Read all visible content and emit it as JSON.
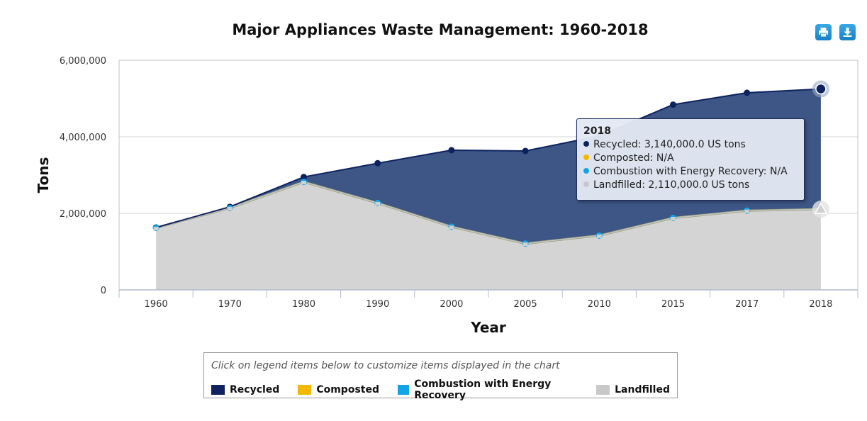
{
  "chart_data": {
    "type": "area",
    "title": "Major Appliances Waste Management: 1960-2018",
    "xlabel": "Year",
    "ylabel": "Tons",
    "categories": [
      "1960",
      "1970",
      "1980",
      "1990",
      "2000",
      "2005",
      "2010",
      "2015",
      "2017",
      "2018"
    ],
    "ylim": [
      0,
      6000000
    ],
    "yticks": [
      0,
      2000000,
      4000000,
      6000000
    ],
    "ytick_labels": [
      "0",
      "2,000,000",
      "4,000,000",
      "6,000,000"
    ],
    "stacked": true,
    "series": [
      {
        "name": "Recycled",
        "color": "#0e2260",
        "values": [
          10000,
          30000,
          130000,
          1040000,
          2000000,
          2420000,
          2600000,
          2960000,
          3080000,
          3140000
        ]
      },
      {
        "name": "Composted",
        "color": "#f5b800",
        "values": [
          null,
          null,
          null,
          null,
          null,
          null,
          null,
          null,
          null,
          null
        ]
      },
      {
        "name": "Combustion with Energy Recovery",
        "color": "#13a4e8",
        "values": [
          0,
          0,
          0,
          0,
          0,
          0,
          0,
          0,
          0,
          0
        ]
      },
      {
        "name": "Landfilled",
        "color": "#c8c8c8",
        "values": [
          1620000,
          2140000,
          2820000,
          2270000,
          1650000,
          1210000,
          1420000,
          1880000,
          2070000,
          2110000
        ]
      }
    ]
  },
  "tooltip": {
    "header": "2018",
    "rows": [
      {
        "text": "Recycled: 3,140,000.0 US tons",
        "color": "#0e2260"
      },
      {
        "text": "Composted: N/A",
        "color": "#f5b800"
      },
      {
        "text": "Combustion with Energy Recovery: N/A",
        "color": "#13a4e8"
      },
      {
        "text": "Landfilled: 2,110,000.0 US tons",
        "color": "#c8c8c8"
      }
    ]
  },
  "legend": {
    "hint": "Click on legend items below to customize items displayed in the chart",
    "items": [
      {
        "label": "Recycled",
        "color": "#0e2260"
      },
      {
        "label": "Composted",
        "color": "#f5b800"
      },
      {
        "label": "Combustion with Energy Recovery",
        "color": "#13a4e8"
      },
      {
        "label": "Landfilled",
        "color": "#c8c8c8"
      }
    ]
  },
  "toolbar": {
    "print_icon": "printer-icon",
    "download_icon": "download-icon"
  }
}
